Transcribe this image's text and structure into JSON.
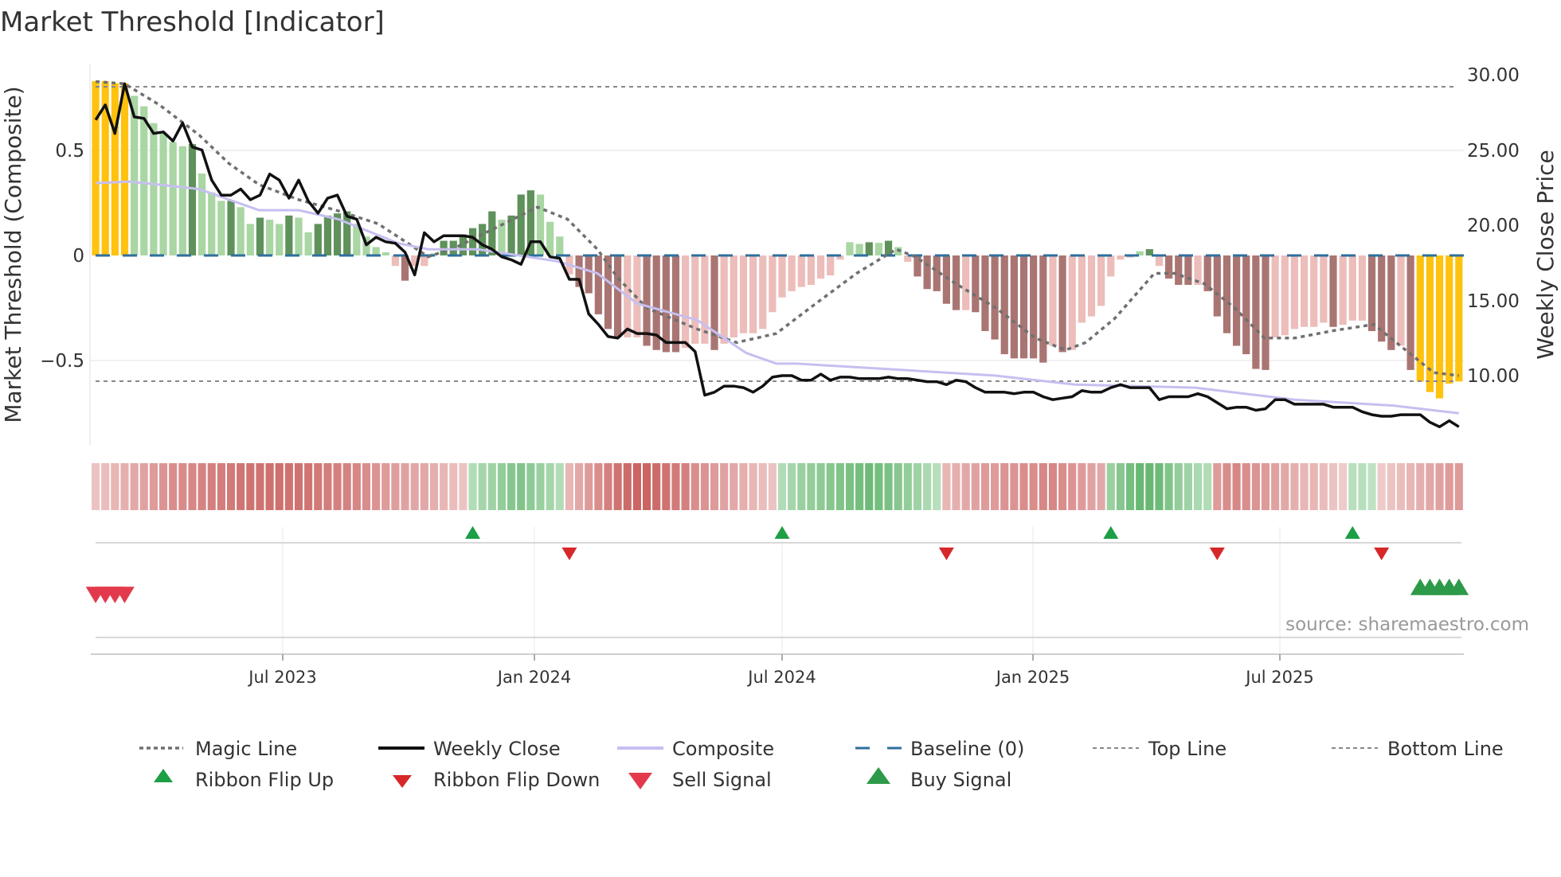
{
  "chart_data": {
    "type": "bar",
    "title": "Market Threshold [Indicator]",
    "ylabel_left": "Market Threshold (Composite)",
    "ylabel_right": "Weekly Close Price",
    "ylim_left": [
      -0.9,
      0.9
    ],
    "ylim_right": [
      5.3,
      30.7
    ],
    "yticks_left": [
      "0.5",
      "0",
      "−0.5"
    ],
    "yticks_left_values": [
      0.5,
      0,
      -0.5
    ],
    "yticks_right": [
      "30.00",
      "25.00",
      "20.00",
      "15.00",
      "10.00"
    ],
    "yticks_right_values": [
      30,
      25,
      20,
      15,
      10
    ],
    "xticks": [
      {
        "label": "Jul 2023",
        "at_week": 19.4
      },
      {
        "label": "Jan 2024",
        "at_week": 45.4
      },
      {
        "label": "Jul 2024",
        "at_week": 71.0
      },
      {
        "label": "Jan 2025",
        "at_week": 96.9
      },
      {
        "label": "Jul 2025",
        "at_week": 122.5
      }
    ],
    "weeks": 142,
    "top_line": 0.8,
    "bottom_line": -0.6,
    "baseline": 0,
    "composite_bars": [
      0.83,
      0.83,
      0.82,
      0.82,
      0.76,
      0.71,
      0.63,
      0.58,
      0.54,
      0.52,
      0.53,
      0.39,
      0.3,
      0.26,
      0.26,
      0.23,
      0.15,
      0.18,
      0.17,
      0.15,
      0.19,
      0.18,
      0.11,
      0.15,
      0.19,
      0.2,
      0.21,
      0.15,
      0.09,
      0.04,
      0.015,
      -0.05,
      -0.12,
      -0.05,
      -0.05,
      0.01,
      0.07,
      0.07,
      0.1,
      0.13,
      0.15,
      0.21,
      0.17,
      0.19,
      0.29,
      0.31,
      0.29,
      0.16,
      0.09,
      -0.09,
      -0.15,
      -0.18,
      -0.28,
      -0.35,
      -0.39,
      -0.39,
      -0.39,
      -0.43,
      -0.45,
      -0.46,
      -0.46,
      -0.44,
      -0.42,
      -0.42,
      -0.45,
      -0.42,
      -0.39,
      -0.37,
      -0.37,
      -0.35,
      -0.27,
      -0.2,
      -0.17,
      -0.15,
      -0.14,
      -0.11,
      -0.095,
      -0.02,
      0.063,
      0.055,
      0.063,
      0.06,
      0.07,
      0.04,
      -0.03,
      -0.1,
      -0.16,
      -0.17,
      -0.23,
      -0.26,
      -0.26,
      -0.27,
      -0.36,
      -0.4,
      -0.47,
      -0.49,
      -0.49,
      -0.49,
      -0.51,
      -0.43,
      -0.46,
      -0.45,
      -0.32,
      -0.29,
      -0.24,
      -0.1,
      -0.02,
      -0.01,
      0.02,
      0.03,
      -0.05,
      -0.11,
      -0.14,
      -0.14,
      -0.14,
      -0.17,
      -0.29,
      -0.37,
      -0.43,
      -0.47,
      -0.54,
      -0.545,
      -0.39,
      -0.38,
      -0.35,
      -0.34,
      -0.34,
      -0.32,
      -0.34,
      -0.33,
      -0.31,
      -0.31,
      -0.36,
      -0.41,
      -0.45,
      -0.43,
      -0.545,
      -0.6,
      -0.65,
      -0.68,
      -0.61,
      -0.6
    ],
    "bar_shade": "yyyyggggggGgggGggGggGggGGGGggggrRrrgGGGGGGgGGGgggrRRRRRrrRRRRrrrRrrrrrrrrrrrrrggGgGgrRRRRRrRRRRRRRRrRrrrrrrrgGrRRRrRRRRRRRrrrrrrRrrrRRRrRyyyyy",
    "bar_shade_key": {
      "y": "extreme",
      "g": "positive-weak",
      "G": "positive-strong",
      "r": "negative-weak",
      "R": "negative-strong"
    },
    "weekly_close": [
      27.0,
      28.0,
      26.1,
      29.4,
      27.2,
      27.1,
      26.1,
      26.2,
      25.6,
      26.8,
      25.2,
      25.0,
      23.0,
      22.0,
      22.0,
      22.4,
      21.7,
      22.0,
      23.4,
      23.0,
      21.8,
      23.0,
      21.6,
      20.8,
      21.8,
      22.0,
      20.6,
      20.4,
      18.7,
      19.2,
      18.9,
      18.8,
      18.2,
      16.7,
      19.5,
      18.9,
      19.3,
      19.3,
      19.3,
      19.2,
      18.7,
      18.4,
      17.9,
      17.7,
      17.4,
      18.9,
      18.9,
      17.9,
      17.8,
      16.4,
      16.4,
      14.1,
      13.4,
      12.6,
      12.5,
      13.1,
      12.8,
      12.8,
      12.7,
      12.2,
      12.2,
      12.2,
      11.6,
      8.7,
      8.9,
      9.3,
      9.3,
      9.2,
      8.9,
      9.3,
      9.9,
      10.0,
      10.0,
      9.7,
      9.7,
      10.1,
      9.7,
      9.9,
      9.9,
      9.8,
      9.8,
      9.8,
      9.9,
      9.8,
      9.8,
      9.7,
      9.6,
      9.6,
      9.4,
      9.7,
      9.6,
      9.2,
      8.9,
      8.9,
      8.9,
      8.8,
      8.9,
      8.9,
      8.6,
      8.4,
      8.5,
      8.6,
      9.0,
      8.9,
      8.9,
      9.2,
      9.4,
      9.2,
      9.2,
      9.2,
      8.4,
      8.6,
      8.6,
      8.6,
      8.8,
      8.6,
      8.2,
      7.8,
      7.9,
      7.9,
      7.7,
      7.8,
      8.4,
      8.4,
      8.1,
      8.1,
      8.1,
      8.1,
      7.9,
      7.9,
      7.9,
      7.6,
      7.4,
      7.3,
      7.3,
      7.4,
      7.4,
      7.4,
      6.9,
      6.6,
      7.0,
      6.6
    ],
    "composite_line": [
      [
        0,
        22.8
      ],
      [
        3.5,
        22.9
      ],
      [
        6.6,
        22.7
      ],
      [
        10.7,
        22.4
      ],
      [
        16.9,
        21.0
      ],
      [
        21,
        21.0
      ],
      [
        25.1,
        20.4
      ],
      [
        31.3,
        18.8
      ],
      [
        34.4,
        18.4
      ],
      [
        39.5,
        18.4
      ],
      [
        44.7,
        17.9
      ],
      [
        47.8,
        17.6
      ],
      [
        51.9,
        16.8
      ],
      [
        56,
        14.8
      ],
      [
        62.2,
        13.7
      ],
      [
        67.3,
        11.5
      ],
      [
        70.4,
        10.8
      ],
      [
        72.5,
        10.8
      ],
      [
        82.8,
        10.4
      ],
      [
        93.1,
        10.0
      ],
      [
        101.3,
        9.4
      ],
      [
        113.7,
        9.2
      ],
      [
        124,
        8.4
      ],
      [
        134.3,
        8.0
      ],
      [
        141,
        7.5
      ]
    ],
    "magic_line": [
      [
        0,
        29.55
      ],
      [
        3,
        29.4
      ],
      [
        6.6,
        28.0
      ],
      [
        10.7,
        26.0
      ],
      [
        13.8,
        24.1
      ],
      [
        16.9,
        22.7
      ],
      [
        21,
        21.7
      ],
      [
        25.1,
        20.95
      ],
      [
        29.2,
        20.1
      ],
      [
        32.3,
        18.8
      ],
      [
        34.4,
        17.9
      ],
      [
        37.5,
        18.6
      ],
      [
        41.6,
        19.9
      ],
      [
        45.7,
        21.2
      ],
      [
        48.8,
        20.4
      ],
      [
        51.9,
        18.4
      ],
      [
        54,
        16.5
      ],
      [
        57,
        14.5
      ],
      [
        62.2,
        13.1
      ],
      [
        66.3,
        12.2
      ],
      [
        70.4,
        12.8
      ],
      [
        74.5,
        14.8
      ],
      [
        78.7,
        16.8
      ],
      [
        82.8,
        18.4
      ],
      [
        84.8,
        17.9
      ],
      [
        89,
        16.1
      ],
      [
        93.1,
        14.5
      ],
      [
        97.2,
        12.5
      ],
      [
        100.3,
        11.7
      ],
      [
        102.4,
        12.2
      ],
      [
        105.4,
        13.8
      ],
      [
        109.5,
        16.8
      ],
      [
        111.6,
        16.8
      ],
      [
        114.7,
        16.1
      ],
      [
        117.8,
        14.5
      ],
      [
        120.9,
        12.5
      ],
      [
        124,
        12.5
      ],
      [
        128.1,
        13.0
      ],
      [
        132.2,
        13.4
      ],
      [
        135.3,
        11.8
      ],
      [
        138.4,
        10.2
      ],
      [
        141,
        10.0
      ]
    ],
    "ribbon": [
      -0.2,
      -0.25,
      -0.3,
      -0.35,
      -0.4,
      -0.45,
      -0.5,
      -0.55,
      -0.6,
      -0.62,
      -0.65,
      -0.68,
      -0.7,
      -0.72,
      -0.75,
      -0.78,
      -0.8,
      -0.8,
      -0.82,
      -0.82,
      -0.8,
      -0.8,
      -0.78,
      -0.75,
      -0.72,
      -0.7,
      -0.68,
      -0.65,
      -0.6,
      -0.55,
      -0.5,
      -0.48,
      -0.45,
      -0.42,
      -0.4,
      -0.35,
      -0.3,
      -0.25,
      -0.2,
      0.3,
      0.4,
      0.45,
      0.55,
      0.65,
      0.7,
      0.6,
      0.5,
      0.4,
      0.3,
      -0.3,
      -0.4,
      -0.5,
      -0.6,
      -0.7,
      -0.8,
      -0.85,
      -0.9,
      -0.9,
      -0.85,
      -0.8,
      -0.75,
      -0.7,
      -0.6,
      -0.55,
      -0.5,
      -0.45,
      -0.4,
      -0.35,
      -0.3,
      -0.25,
      -0.2,
      0.3,
      0.4,
      0.5,
      0.55,
      0.6,
      0.65,
      0.7,
      0.75,
      0.8,
      0.85,
      0.8,
      0.75,
      0.65,
      0.55,
      0.45,
      0.35,
      0.25,
      -0.3,
      -0.35,
      -0.4,
      -0.45,
      -0.5,
      -0.5,
      -0.55,
      -0.55,
      -0.6,
      -0.6,
      -0.65,
      -0.65,
      -0.6,
      -0.55,
      -0.5,
      -0.45,
      -0.4,
      0.5,
      0.65,
      0.8,
      0.9,
      0.9,
      0.85,
      0.7,
      0.55,
      0.45,
      0.35,
      0.3,
      -0.5,
      -0.6,
      -0.65,
      -0.6,
      -0.55,
      -0.5,
      -0.45,
      -0.4,
      -0.35,
      -0.3,
      -0.3,
      -0.25,
      -0.2,
      -0.15,
      0.25,
      0.25,
      0.2,
      -0.15,
      -0.2,
      -0.25,
      -0.3,
      -0.35,
      -0.4,
      -0.45,
      -0.5,
      -0.5
    ],
    "ribbon_flip_up_weeks": [
      39,
      71,
      105,
      130
    ],
    "ribbon_flip_down_weeks": [
      49,
      88,
      116,
      133
    ],
    "sell_signal_weeks": [
      0,
      1,
      2,
      3
    ],
    "buy_signal_weeks": [
      137,
      138,
      139,
      140,
      141
    ],
    "legend": {
      "placement": "bottom",
      "items": [
        "Magic Line",
        "Weekly Close",
        "Composite",
        "Baseline (0)",
        "Top Line",
        "Bottom Line",
        "Ribbon Flip Up",
        "Ribbon Flip Down",
        "Sell Signal",
        "Buy Signal"
      ]
    },
    "source": "source: sharemaestro.com",
    "colors": {
      "extreme": "#ffc20e",
      "positive-weak": "#a9d6a3",
      "positive-strong": "#5f915b",
      "negative-weak": "#ecbdba",
      "negative-strong": "#a97572",
      "magic": "#707070",
      "close": "#111111",
      "composite": "#c6bff0",
      "baseline": "#2e6f9e",
      "flip_up": "#1e9e45",
      "flip_down": "#d62828",
      "sell": "#e23a4c",
      "buy": "#2c9a48"
    }
  }
}
